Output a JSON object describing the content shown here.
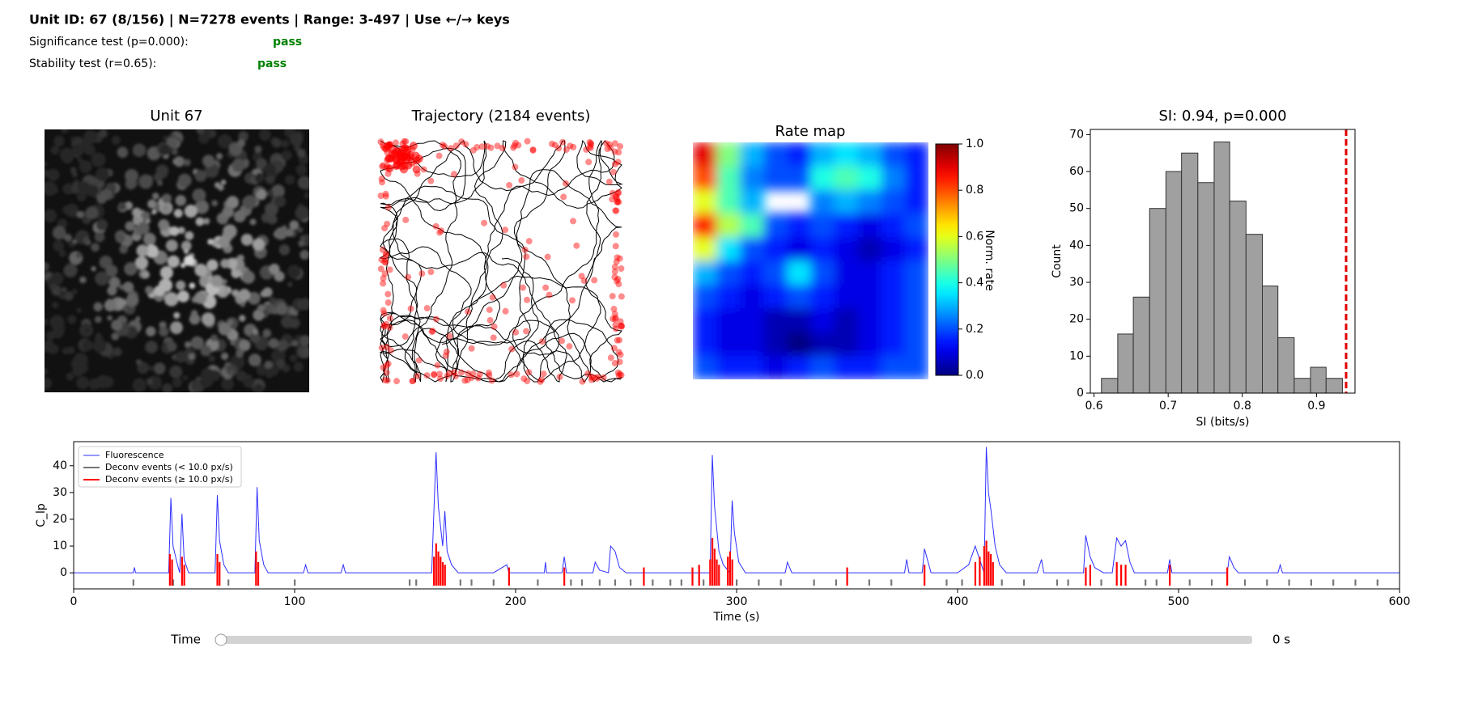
{
  "header": {
    "title": "Unit ID: 67 (8/156) | N=7278 events | Range: 3-497 | Use ←/→ keys",
    "tests": [
      {
        "label": "Significance test (p=0.000):",
        "result": "pass"
      },
      {
        "label": "Stability test (r=0.65):",
        "result": "pass"
      }
    ]
  },
  "slider": {
    "label": "Time",
    "value_text": "0 s"
  },
  "chart_data": [
    {
      "type": "image",
      "title": "Unit 67"
    },
    {
      "type": "trajectory",
      "title": "Trajectory (2184 events)"
    },
    {
      "type": "heatmap",
      "title": "Rate map",
      "colormap": "jet",
      "colorbar_label": "Norm. rate",
      "clim": [
        0,
        1
      ],
      "cticks": [
        {
          "value": 0,
          "label": "0.0"
        },
        0.2,
        0.4,
        0.6,
        0.8,
        {
          "value": 1,
          "label": "1.0"
        }
      ],
      "z": [
        [
          0.9,
          0.5,
          0.3,
          0.2,
          0.15,
          0.3,
          0.35,
          0.3,
          0.2,
          0.15
        ],
        [
          0.8,
          0.45,
          0.25,
          0.2,
          0.2,
          0.4,
          0.45,
          0.4,
          0.25,
          0.15
        ],
        [
          0.6,
          0.45,
          0.3,
          null,
          null,
          0.25,
          0.3,
          0.25,
          0.2,
          0.15
        ],
        [
          0.85,
          0.55,
          0.45,
          0.2,
          0.15,
          0.2,
          0.15,
          0.1,
          0.15,
          0.2
        ],
        [
          0.6,
          0.35,
          0.2,
          0.15,
          0.1,
          0.15,
          0.1,
          0.05,
          0.1,
          0.15
        ],
        [
          0.3,
          0.2,
          0.15,
          0.2,
          0.35,
          0.2,
          0.1,
          0.1,
          0.15,
          0.2
        ],
        [
          0.2,
          0.15,
          0.1,
          0.15,
          0.2,
          0.15,
          0.1,
          0.1,
          0.15,
          0.2
        ],
        [
          0.15,
          0.1,
          0.1,
          0.05,
          0.05,
          0.1,
          0.05,
          0.1,
          0.15,
          0.2
        ],
        [
          0.15,
          0.1,
          0.1,
          0.05,
          0.0,
          0.05,
          0.05,
          0.1,
          0.15,
          0.2
        ],
        [
          0.2,
          0.15,
          0.15,
          0.1,
          0.15,
          0.2,
          0.15,
          0.15,
          0.2,
          0.2
        ]
      ]
    },
    {
      "type": "histogram",
      "title": "SI: 0.94, p=0.000",
      "xlabel": "SI (bits/s)",
      "ylabel": "Count",
      "bins": [
        0.61,
        0.632,
        0.653,
        0.675,
        0.697,
        0.718,
        0.74,
        0.762,
        0.783,
        0.805,
        0.827,
        0.848,
        0.87,
        0.892,
        0.913,
        0.935
      ],
      "values": [
        4,
        16,
        26,
        50,
        60,
        65,
        57,
        68,
        52,
        43,
        29,
        15,
        4,
        7,
        4
      ],
      "color": "#a0a0a0",
      "edgecolor": "#333333",
      "vline": 0.94,
      "vline_color": "#e00000",
      "xlim": [
        0.595,
        0.952
      ],
      "xticks": [
        0.6,
        0.7,
        0.8,
        0.9
      ],
      "ylim": [
        0,
        71.4
      ],
      "yticks": [
        0,
        10,
        20,
        30,
        40,
        50,
        60,
        70
      ]
    },
    {
      "type": "line",
      "xlabel": "Time (s)",
      "ylabel": "C_lp",
      "xlim": [
        0,
        600
      ],
      "xticks": [
        0,
        100,
        200,
        300,
        400,
        500,
        600
      ],
      "ylim": [
        -6,
        49
      ],
      "yticks": [
        0,
        10,
        20,
        30,
        40
      ],
      "legend": "upper left",
      "series": [
        {
          "name": "Fluorescence",
          "kind": "line",
          "color": "#3030ff",
          "x": [
            0,
            27,
            27.5,
            28,
            43,
            44,
            45,
            47,
            48,
            49,
            50,
            52,
            64,
            65,
            66,
            68,
            70,
            82,
            83,
            84,
            86,
            88,
            104,
            105,
            106,
            121,
            122,
            123,
            162,
            164,
            165,
            167,
            168,
            169,
            171,
            174,
            190,
            196,
            197,
            213,
            213.5,
            214,
            221,
            222,
            223,
            235,
            236,
            238,
            242,
            243,
            245,
            247,
            250,
            288,
            289,
            290,
            292,
            294,
            297,
            298,
            299,
            301,
            304,
            322,
            323,
            325,
            376,
            377,
            378,
            384,
            385,
            386,
            388,
            400,
            405,
            408,
            410,
            412,
            413,
            414,
            415,
            417,
            419,
            422,
            436,
            438,
            439,
            457,
            458,
            460,
            462,
            466,
            470,
            472,
            474,
            476,
            478,
            480,
            495,
            496,
            497,
            522,
            523,
            525,
            527,
            545,
            546,
            547,
            600
          ],
          "values": [
            0,
            0,
            2,
            0,
            0,
            28,
            10,
            3,
            0,
            22,
            5,
            0,
            0,
            29,
            12,
            3,
            0,
            0,
            32,
            12,
            3,
            0,
            0,
            3,
            0,
            0,
            3,
            0,
            0,
            45,
            25,
            10,
            23,
            8,
            3,
            0,
            0,
            3,
            0,
            0,
            4,
            0,
            0,
            6,
            0,
            0,
            4,
            1,
            0,
            10,
            8,
            2,
            0,
            0,
            44,
            25,
            8,
            3,
            0,
            27,
            15,
            4,
            0,
            0,
            4,
            0,
            0,
            5,
            0,
            0,
            9,
            6,
            0,
            0,
            3,
            10,
            5,
            0,
            47,
            30,
            24,
            10,
            3,
            0,
            0,
            5,
            0,
            0,
            14,
            6,
            2,
            0,
            0,
            13,
            10,
            12,
            4,
            0,
            0,
            5,
            0,
            0,
            6,
            2,
            0,
            0,
            3,
            0,
            0
          ]
        },
        {
          "name": "Deconv events (< 10.0 px/s)",
          "kind": "events",
          "color": "#777777",
          "x": [
            27,
            45,
            70,
            100,
            152,
            155,
            175,
            180,
            190,
            210,
            225,
            230,
            238,
            245,
            252,
            262,
            270,
            275,
            285,
            300,
            310,
            320,
            335,
            345,
            360,
            370,
            395,
            402,
            420,
            430,
            445,
            450,
            465,
            485,
            490,
            505,
            515,
            530,
            540,
            550,
            560,
            570,
            580,
            590
          ],
          "values": [
            -2.5,
            -2.5,
            -2.5,
            -2.5,
            -2.5,
            -2.5,
            -2.5,
            -2.5,
            -2.5,
            -2.5,
            -2.5,
            -2.5,
            -2.5,
            -2.5,
            -2.5,
            -2.5,
            -2.5,
            -2.5,
            -2.5,
            -2.5,
            -2.5,
            -2.5,
            -2.5,
            -2.5,
            -2.5,
            -2.5,
            -2.5,
            -2.5,
            -2.5,
            -2.5,
            -2.5,
            -2.5,
            -2.5,
            -2.5,
            -2.5,
            -2.5,
            -2.5,
            -2.5,
            -2.5,
            -2.5,
            -2.5,
            -2.5,
            -2.5,
            -2.5
          ]
        },
        {
          "name": "Deconv events (≥ 10.0 px/s)",
          "kind": "events",
          "color": "#ff0000",
          "x": [
            43.5,
            44.5,
            49,
            50,
            65,
            66,
            82.5,
            83.5,
            163,
            164,
            165,
            166,
            167,
            168,
            197,
            222,
            258,
            280,
            283,
            288,
            289,
            290,
            291,
            292,
            296,
            297,
            298,
            350,
            385,
            408,
            410,
            412,
            413,
            414,
            415,
            416,
            458,
            460,
            472,
            474,
            476,
            496,
            522
          ],
          "values": [
            7,
            5,
            6,
            3,
            7,
            4,
            8,
            4,
            6,
            11,
            8,
            6,
            4,
            3,
            2,
            2,
            2,
            2,
            3,
            5,
            13,
            9,
            5,
            3,
            6,
            8,
            5,
            2,
            3,
            4,
            6,
            10,
            12,
            8,
            7,
            4,
            2,
            3,
            4,
            3,
            3,
            3,
            2
          ]
        }
      ]
    }
  ]
}
